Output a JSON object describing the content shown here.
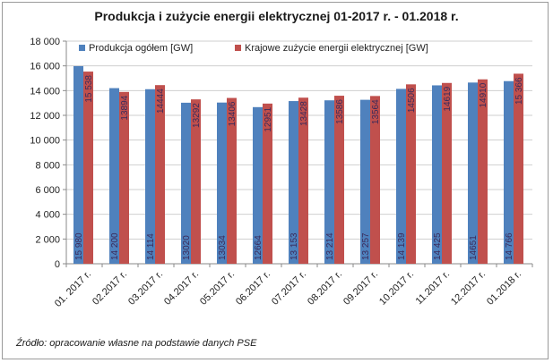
{
  "chart_data": {
    "type": "bar",
    "title": "Produkcja i zużycie energii elektrycznej 01-2017 r. - 01.2018 r.",
    "source": "Źródło: opracowanie własne na podstawie danych PSE",
    "categories": [
      "01. 2017 r.",
      "02.2017 r.",
      "03.2017 r.",
      "04.2017 r.",
      "05.2017 r.",
      "06.2017 r.",
      "07.2017 r.",
      "08.2017 r.",
      "09.2017 r.",
      "10.2017 r.",
      "11.2017 r.",
      "12.2017 r.",
      "01.2018 r."
    ],
    "series": [
      {
        "name": "Produkcja ogółem [GW]",
        "color": "#4f81bd",
        "values": [
          15980,
          14200,
          14114,
          13020,
          13034,
          12664,
          13153,
          13214,
          13257,
          14139,
          14425,
          14651,
          14766
        ],
        "labels": [
          "15 980",
          "14 200",
          "14 114",
          "13020",
          "13034",
          "12664",
          "13 153",
          "13 214",
          "13 257",
          "14 139",
          "14 425",
          "14651",
          "14 766"
        ]
      },
      {
        "name": "Krajowe zużycie energii elektrycznej [GW]",
        "color": "#c0504d",
        "values": [
          15538,
          13894,
          14444,
          13292,
          13406,
          12951,
          13428,
          13586,
          13564,
          14506,
          14619,
          14910,
          15366
        ],
        "labels": [
          "15 538",
          "13894",
          "14444",
          "13292",
          "13406",
          "12951",
          "13428",
          "13586",
          "13564",
          "14506",
          "14619",
          "14910",
          "15 366"
        ]
      }
    ],
    "yticks": [
      "0",
      "2 000",
      "4 000",
      "6 000",
      "8 000",
      "10 000",
      "12 000",
      "14 000",
      "16 000",
      "18 000"
    ],
    "ylim": [
      0,
      18000
    ],
    "legend": "top-left",
    "grid": true
  }
}
